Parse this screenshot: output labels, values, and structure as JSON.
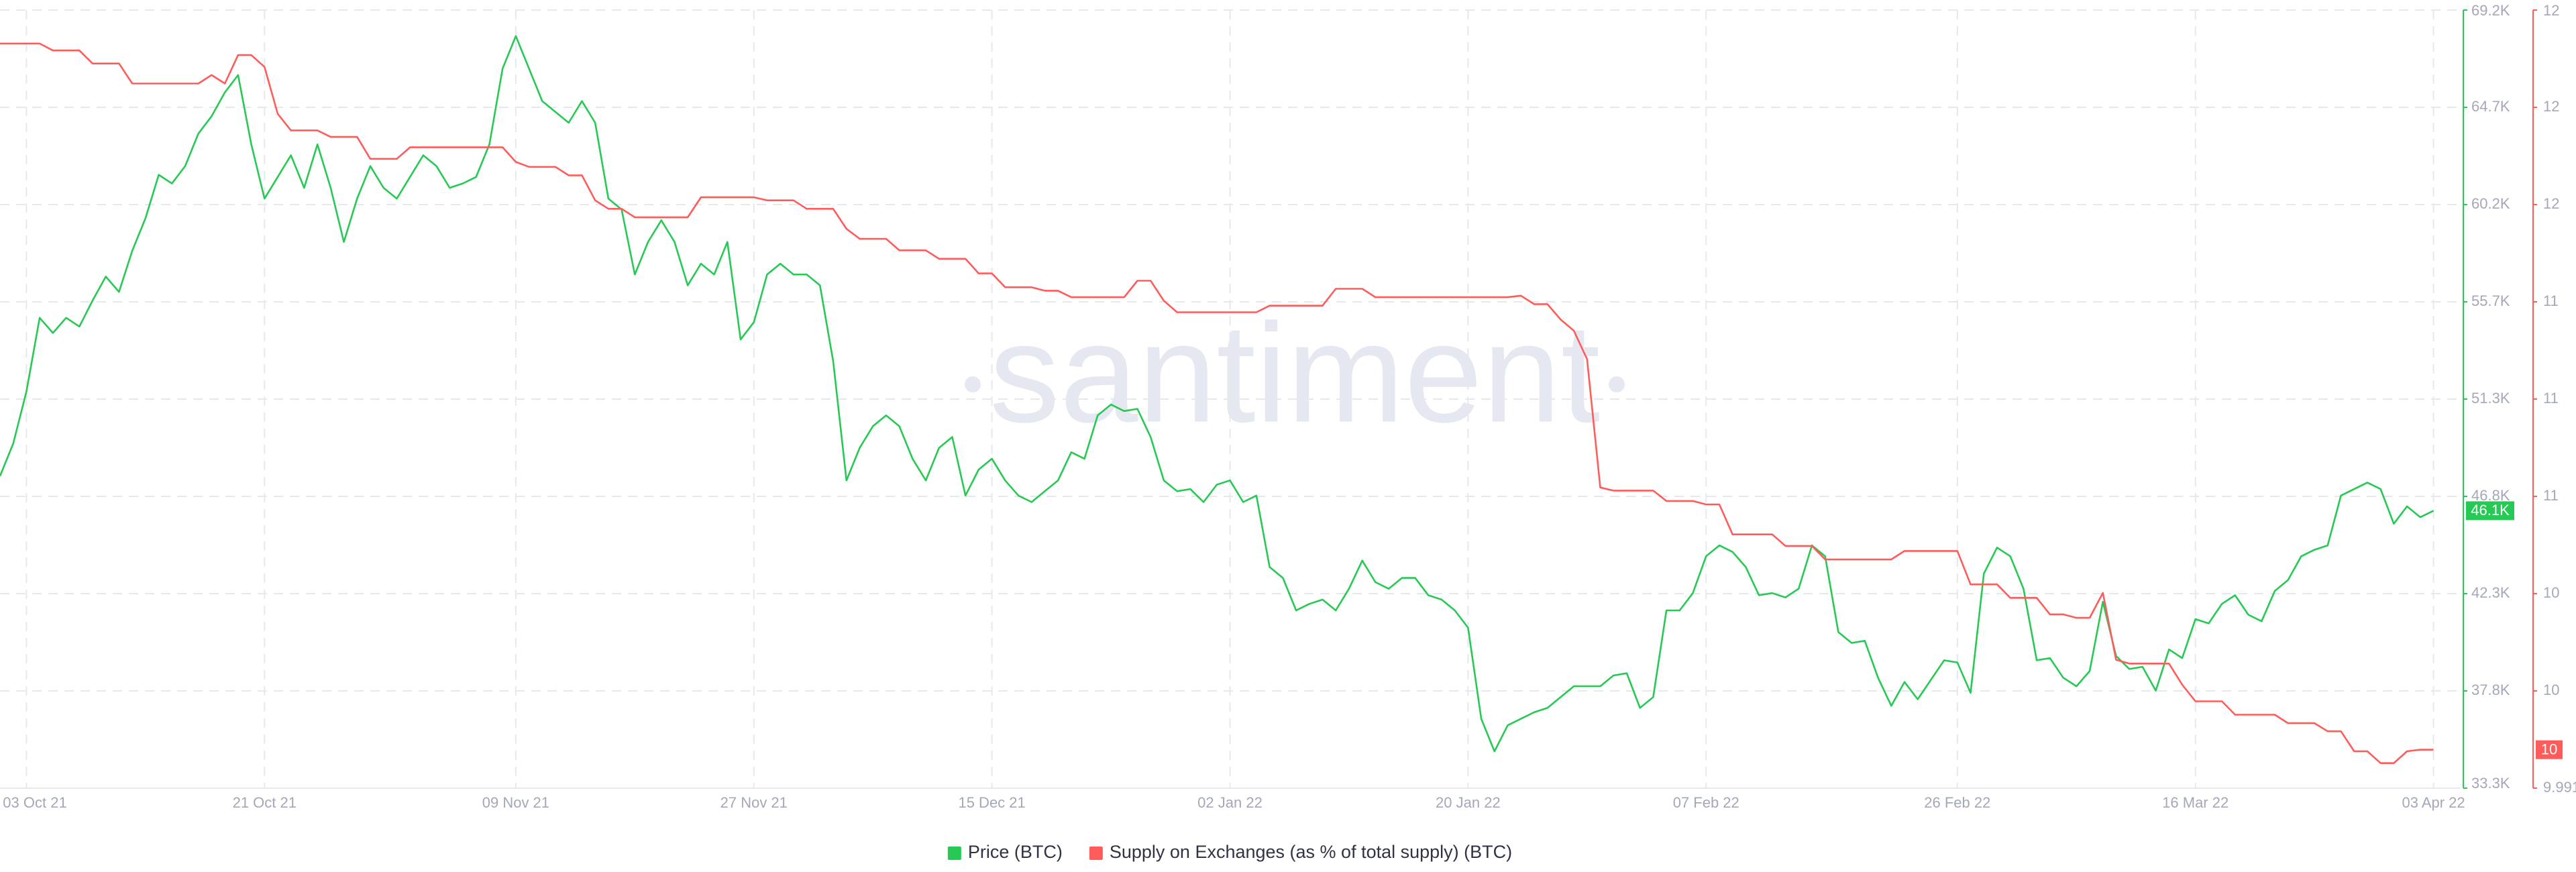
{
  "chart_data": {
    "type": "line",
    "watermark": "santiment",
    "x": [
      "2021-10-01",
      "2021-10-02",
      "2021-10-03",
      "2021-10-04",
      "2021-10-05",
      "2021-10-06",
      "2021-10-07",
      "2021-10-08",
      "2021-10-09",
      "2021-10-10",
      "2021-10-11",
      "2021-10-12",
      "2021-10-13",
      "2021-10-14",
      "2021-10-15",
      "2021-10-16",
      "2021-10-17",
      "2021-10-18",
      "2021-10-19",
      "2021-10-20",
      "2021-10-21",
      "2021-10-22",
      "2021-10-23",
      "2021-10-24",
      "2021-10-25",
      "2021-10-26",
      "2021-10-27",
      "2021-10-28",
      "2021-10-29",
      "2021-10-30",
      "2021-10-31",
      "2021-11-01",
      "2021-11-02",
      "2021-11-03",
      "2021-11-04",
      "2021-11-05",
      "2021-11-06",
      "2021-11-07",
      "2021-11-08",
      "2021-11-09",
      "2021-11-10",
      "2021-11-11",
      "2021-11-12",
      "2021-11-13",
      "2021-11-14",
      "2021-11-15",
      "2021-11-16",
      "2021-11-17",
      "2021-11-18",
      "2021-11-19",
      "2021-11-20",
      "2021-11-21",
      "2021-11-22",
      "2021-11-23",
      "2021-11-24",
      "2021-11-25",
      "2021-11-26",
      "2021-11-27",
      "2021-11-28",
      "2021-11-29",
      "2021-11-30",
      "2021-12-01",
      "2021-12-02",
      "2021-12-03",
      "2021-12-04",
      "2021-12-05",
      "2021-12-06",
      "2021-12-07",
      "2021-12-08",
      "2021-12-09",
      "2021-12-10",
      "2021-12-11",
      "2021-12-12",
      "2021-12-13",
      "2021-12-14",
      "2021-12-15",
      "2021-12-16",
      "2021-12-17",
      "2021-12-18",
      "2021-12-19",
      "2021-12-20",
      "2021-12-21",
      "2021-12-22",
      "2021-12-23",
      "2021-12-24",
      "2021-12-25",
      "2021-12-26",
      "2021-12-27",
      "2021-12-28",
      "2021-12-29",
      "2021-12-30",
      "2021-12-31",
      "2022-01-01",
      "2022-01-02",
      "2022-01-03",
      "2022-01-04",
      "2022-01-05",
      "2022-01-06",
      "2022-01-07",
      "2022-01-08",
      "2022-01-09",
      "2022-01-10",
      "2022-01-11",
      "2022-01-12",
      "2022-01-13",
      "2022-01-14",
      "2022-01-15",
      "2022-01-16",
      "2022-01-17",
      "2022-01-18",
      "2022-01-19",
      "2022-01-20",
      "2022-01-21",
      "2022-01-22",
      "2022-01-23",
      "2022-01-24",
      "2022-01-25",
      "2022-01-26",
      "2022-01-27",
      "2022-01-28",
      "2022-01-29",
      "2022-01-30",
      "2022-01-31",
      "2022-02-01",
      "2022-02-02",
      "2022-02-03",
      "2022-02-04",
      "2022-02-05",
      "2022-02-06",
      "2022-02-07",
      "2022-02-08",
      "2022-02-09",
      "2022-02-10",
      "2022-02-11",
      "2022-02-12",
      "2022-02-13",
      "2022-02-14",
      "2022-02-15",
      "2022-02-16",
      "2022-02-17",
      "2022-02-18",
      "2022-02-19",
      "2022-02-20",
      "2022-02-21",
      "2022-02-22",
      "2022-02-23",
      "2022-02-24",
      "2022-02-25",
      "2022-02-26",
      "2022-02-27",
      "2022-02-28",
      "2022-03-01",
      "2022-03-02",
      "2022-03-03",
      "2022-03-04",
      "2022-03-05",
      "2022-03-06",
      "2022-03-07",
      "2022-03-08",
      "2022-03-09",
      "2022-03-10",
      "2022-03-11",
      "2022-03-12",
      "2022-03-13",
      "2022-03-14",
      "2022-03-15",
      "2022-03-16",
      "2022-03-17",
      "2022-03-18",
      "2022-03-19",
      "2022-03-20",
      "2022-03-21",
      "2022-03-22",
      "2022-03-23",
      "2022-03-24",
      "2022-03-25",
      "2022-03-26",
      "2022-03-27",
      "2022-03-28",
      "2022-03-29",
      "2022-03-30",
      "2022-03-31",
      "2022-04-01",
      "2022-04-02",
      "2022-04-03"
    ],
    "xlim": [
      "2021-10-01",
      "2022-04-05"
    ],
    "xticks": [
      {
        "value": "2021-10-03",
        "label": "03 Oct 21"
      },
      {
        "value": "2021-10-21",
        "label": "21 Oct 21"
      },
      {
        "value": "2021-11-09",
        "label": "09 Nov 21"
      },
      {
        "value": "2021-11-27",
        "label": "27 Nov 21"
      },
      {
        "value": "2021-12-15",
        "label": "15 Dec 21"
      },
      {
        "value": "2022-01-02",
        "label": "02 Jan 22"
      },
      {
        "value": "2022-01-20",
        "label": "20 Jan 22"
      },
      {
        "value": "2022-02-07",
        "label": "07 Feb 22"
      },
      {
        "value": "2022-02-26",
        "label": "26 Feb 22"
      },
      {
        "value": "2022-03-16",
        "label": "16 Mar 22"
      },
      {
        "value": "2022-04-03",
        "label": "03 Apr 22"
      }
    ],
    "ylim": [
      33300,
      69200
    ],
    "yticks": [
      {
        "value": 33300,
        "label": "33.3K"
      },
      {
        "value": 37787.5,
        "label": "37.8K"
      },
      {
        "value": 42275,
        "label": "42.3K"
      },
      {
        "value": 46762.5,
        "label": "46.8K"
      },
      {
        "value": 51250,
        "label": "51.3K"
      },
      {
        "value": 55737.5,
        "label": "55.7K"
      },
      {
        "value": 60225,
        "label": "60.2K"
      },
      {
        "value": 64712.5,
        "label": "64.7K"
      },
      {
        "value": 69200,
        "label": "69.2K"
      }
    ],
    "y2lim": [
      9.991,
      12.015
    ],
    "y2ticks": [
      9.991,
      {
        "value": 10.244,
        "label": "10"
      },
      {
        "value": 10.497,
        "label": "10"
      },
      {
        "value": 10.75,
        "label": "11"
      },
      {
        "value": 11.003,
        "label": "11"
      },
      {
        "value": 11.256,
        "label": "11"
      },
      {
        "value": 11.509,
        "label": "12"
      },
      {
        "value": 11.762,
        "label": "12"
      },
      {
        "value": 12.015,
        "label": "12"
      }
    ],
    "grid": true,
    "legend": "bottom",
    "series": [
      {
        "name": "Price (BTC)",
        "color": "#26c953",
        "current_label": "46.1K",
        "values": [
          47700,
          49200,
          51600,
          55000,
          54300,
          55000,
          54600,
          55800,
          56900,
          56200,
          58100,
          59600,
          61600,
          61200,
          62000,
          63500,
          64300,
          65400,
          66200,
          63000,
          60500,
          61500,
          62500,
          61000,
          63000,
          61000,
          58500,
          60500,
          62000,
          61000,
          60500,
          61500,
          62500,
          62000,
          61000,
          61200,
          61500,
          63000,
          66500,
          68000,
          66500,
          65000,
          64500,
          64000,
          65000,
          64000,
          60500,
          60000,
          57000,
          58500,
          59500,
          58500,
          56500,
          57500,
          57000,
          58500,
          54000,
          54800,
          57000,
          57500,
          57000,
          57000,
          56500,
          53000,
          47500,
          49000,
          50000,
          50500,
          50000,
          48500,
          47500,
          49000,
          49500,
          46800,
          48000,
          48500,
          47500,
          46800,
          46500,
          47000,
          47500,
          48800,
          48500,
          50500,
          51000,
          50700,
          50800,
          49500,
          47500,
          47000,
          47100,
          46500,
          47300,
          47500,
          46500,
          46800,
          43500,
          43000,
          41500,
          41800,
          42000,
          41500,
          42500,
          43800,
          42800,
          42500,
          43000,
          43000,
          42200,
          42000,
          41500,
          40700,
          36500,
          35000,
          36200,
          36500,
          36800,
          37000,
          37500,
          38000,
          38000,
          38000,
          38500,
          38600,
          37000,
          37500,
          41500,
          41500,
          42300,
          44000,
          44500,
          44200,
          43500,
          42200,
          42300,
          42100,
          42500,
          44500,
          44000,
          40500,
          40000,
          40100,
          38400,
          37100,
          38200,
          37400,
          38300,
          39200,
          39100,
          37700,
          43200,
          44400,
          44000,
          42500,
          39200,
          39300,
          38400,
          38000,
          38700,
          41900,
          39400,
          38800,
          38900,
          37800,
          39700,
          39300,
          41100,
          40900,
          41800,
          42200,
          41300,
          41000,
          42400,
          42900,
          44000,
          44300,
          44500,
          46800,
          47100,
          47400,
          47100,
          45500,
          46300,
          45800,
          46100
        ]
      },
      {
        "name": "Supply on Exchanges (as % of total supply) (BTC)",
        "color": "#ff5b5b",
        "axis": "y2",
        "current_label": "10",
        "values": [
          11.928,
          11.928,
          11.928,
          11.928,
          11.91,
          11.91,
          11.91,
          11.876,
          11.876,
          11.876,
          11.824,
          11.824,
          11.824,
          11.824,
          11.824,
          11.824,
          11.846,
          11.824,
          11.898,
          11.898,
          11.867,
          11.745,
          11.702,
          11.702,
          11.702,
          11.685,
          11.685,
          11.685,
          11.628,
          11.628,
          11.628,
          11.658,
          11.658,
          11.658,
          11.658,
          11.658,
          11.658,
          11.658,
          11.658,
          11.62,
          11.607,
          11.607,
          11.607,
          11.585,
          11.585,
          11.52,
          11.498,
          11.498,
          11.476,
          11.476,
          11.476,
          11.476,
          11.476,
          11.528,
          11.528,
          11.528,
          11.528,
          11.528,
          11.52,
          11.52,
          11.52,
          11.498,
          11.498,
          11.498,
          11.446,
          11.42,
          11.42,
          11.42,
          11.39,
          11.39,
          11.39,
          11.368,
          11.368,
          11.368,
          11.33,
          11.33,
          11.294,
          11.294,
          11.294,
          11.285,
          11.285,
          11.268,
          11.268,
          11.268,
          11.268,
          11.268,
          11.311,
          11.311,
          11.259,
          11.229,
          11.229,
          11.229,
          11.229,
          11.229,
          11.229,
          11.229,
          11.246,
          11.246,
          11.246,
          11.246,
          11.246,
          11.29,
          11.29,
          11.29,
          11.268,
          11.268,
          11.268,
          11.268,
          11.268,
          11.268,
          11.268,
          11.268,
          11.268,
          11.268,
          11.268,
          11.272,
          11.25,
          11.25,
          11.21,
          11.181,
          11.107,
          10.773,
          10.765,
          10.765,
          10.765,
          10.765,
          10.738,
          10.738,
          10.738,
          10.729,
          10.729,
          10.651,
          10.651,
          10.651,
          10.651,
          10.621,
          10.621,
          10.621,
          10.586,
          10.586,
          10.586,
          10.586,
          10.586,
          10.586,
          10.608,
          10.608,
          10.608,
          10.608,
          10.608,
          10.521,
          10.521,
          10.521,
          10.486,
          10.486,
          10.486,
          10.443,
          10.443,
          10.434,
          10.434,
          10.499,
          10.325,
          10.315,
          10.315,
          10.315,
          10.315,
          10.26,
          10.217,
          10.217,
          10.217,
          10.182,
          10.182,
          10.182,
          10.182,
          10.16,
          10.16,
          10.16,
          10.139,
          10.139,
          10.087,
          10.087,
          10.056,
          10.056,
          10.087,
          10.091,
          10.091
        ]
      }
    ]
  }
}
